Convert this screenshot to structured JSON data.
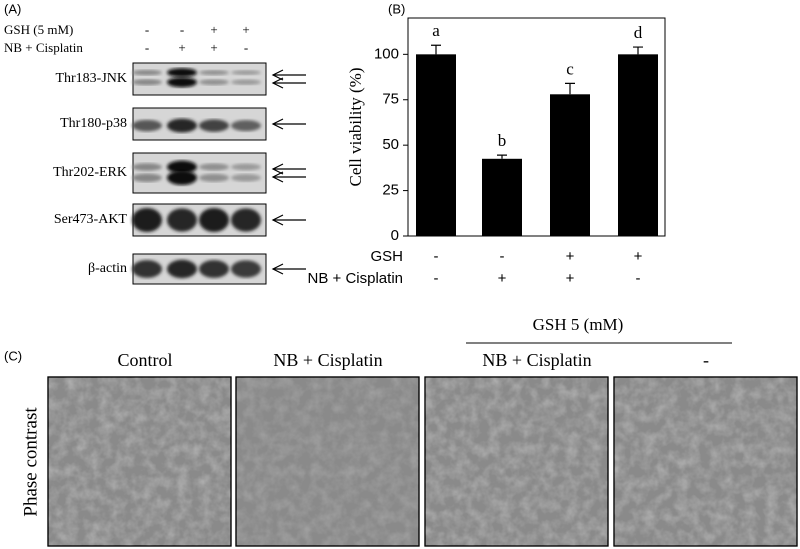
{
  "panel_a": {
    "label": "(A)",
    "rows": [
      {
        "name": "GSH (5 mM)",
        "signs": [
          "-",
          "-",
          "+",
          "+"
        ]
      },
      {
        "name": "NB + Cisplatin",
        "signs": [
          "-",
          "+",
          "+",
          "-"
        ]
      }
    ],
    "blots": [
      "Thr183-JNK",
      "Thr180-p38",
      "Thr202-ERK",
      "Ser473-AKT",
      "β-actin"
    ]
  },
  "chart_data": {
    "type": "bar",
    "panel_label": "(B)",
    "y_label": "Cell viability (%)",
    "values": [
      100,
      42.5,
      78,
      100
    ],
    "errors": [
      5,
      2,
      6,
      4
    ],
    "annotations": [
      "a",
      "b",
      "c",
      "d"
    ],
    "color": "#000000",
    "ylim": [
      0,
      120
    ],
    "yticks": [
      0,
      25,
      50,
      75,
      100
    ],
    "condition_rows": [
      {
        "name": "GSH",
        "signs": [
          "-",
          "-",
          "+",
          "+"
        ]
      },
      {
        "name": "NB + Cisplatin",
        "signs": [
          "-",
          "+",
          "+",
          "-"
        ]
      }
    ]
  },
  "panel_c": {
    "label": "(C)",
    "group_label": "GSH 5 (mM)",
    "row_label": "Phase contrast",
    "columns": [
      "Control",
      "NB + Cisplatin",
      "NB + Cisplatin",
      "-"
    ]
  }
}
